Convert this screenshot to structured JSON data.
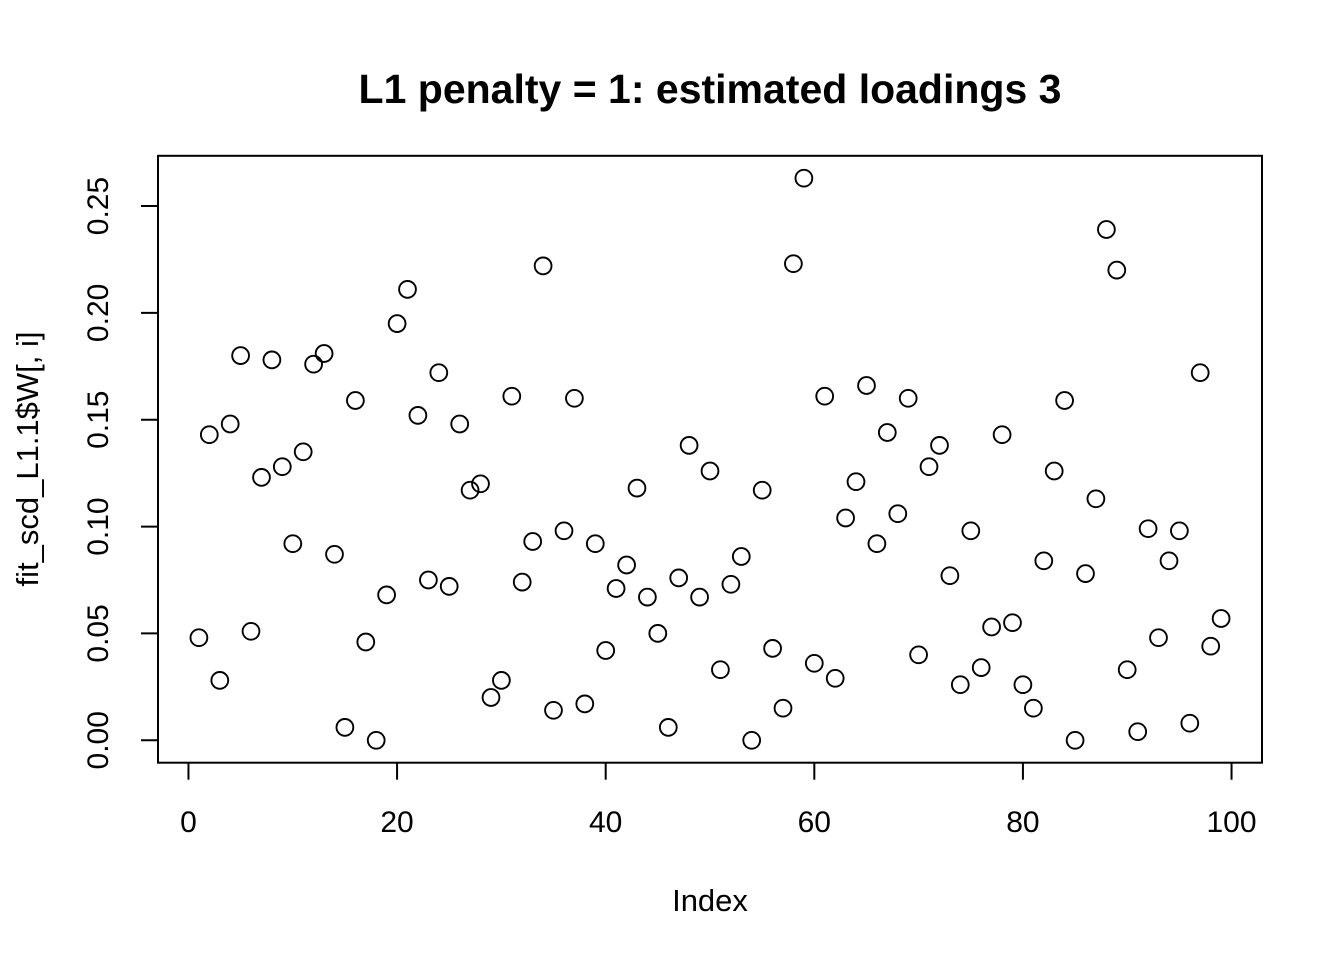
{
  "figure": {
    "background": "#ffffff",
    "foreground": "#000000"
  },
  "chart_data": {
    "type": "scatter",
    "title": "L1 penalty = 1: estimated loadings 3",
    "xlabel": "Index",
    "ylabel": "fit_scd_L1.1$W[, i]",
    "marker": "open-circle",
    "grid": false,
    "legend": null,
    "point_color": "#000000",
    "axis_color": "#000000",
    "xlim": [
      -2.92,
      102.92
    ],
    "ylim": [
      -0.0105,
      0.2735
    ],
    "x_ticks": [
      0,
      20,
      40,
      60,
      80,
      100
    ],
    "x_tick_labels": [
      "0",
      "20",
      "40",
      "60",
      "80",
      "100"
    ],
    "y_ticks": [
      0.0,
      0.05,
      0.1,
      0.15,
      0.2,
      0.25
    ],
    "y_tick_labels": [
      "0.00",
      "0.05",
      "0.10",
      "0.15",
      "0.20",
      "0.25"
    ],
    "n_points": 99,
    "x": [
      1,
      2,
      3,
      4,
      5,
      6,
      7,
      8,
      9,
      10,
      11,
      12,
      13,
      14,
      15,
      16,
      17,
      18,
      19,
      20,
      21,
      22,
      23,
      24,
      25,
      26,
      27,
      28,
      29,
      30,
      31,
      32,
      33,
      34,
      35,
      36,
      37,
      38,
      39,
      40,
      41,
      42,
      43,
      44,
      45,
      46,
      47,
      48,
      49,
      50,
      51,
      52,
      53,
      54,
      55,
      56,
      57,
      58,
      59,
      60,
      61,
      62,
      63,
      64,
      65,
      66,
      67,
      68,
      69,
      70,
      71,
      72,
      73,
      74,
      75,
      76,
      77,
      78,
      79,
      80,
      81,
      82,
      83,
      84,
      85,
      86,
      87,
      88,
      89,
      90,
      91,
      92,
      93,
      94,
      95,
      96,
      97,
      98,
      99
    ],
    "y": [
      0.048,
      0.143,
      0.028,
      0.148,
      0.18,
      0.051,
      0.123,
      0.178,
      0.128,
      0.092,
      0.135,
      0.176,
      0.181,
      0.087,
      0.006,
      0.159,
      0.046,
      0.0,
      0.068,
      0.195,
      0.211,
      0.152,
      0.075,
      0.172,
      0.072,
      0.148,
      0.117,
      0.12,
      0.02,
      0.028,
      0.161,
      0.074,
      0.093,
      0.222,
      0.014,
      0.098,
      0.16,
      0.017,
      0.092,
      0.042,
      0.071,
      0.082,
      0.118,
      0.067,
      0.05,
      0.006,
      0.076,
      0.138,
      0.067,
      0.126,
      0.033,
      0.073,
      0.086,
      0.0,
      0.117,
      0.043,
      0.015,
      0.223,
      0.263,
      0.036,
      0.161,
      0.029,
      0.104,
      0.121,
      0.166,
      0.092,
      0.144,
      0.106,
      0.16,
      0.04,
      0.128,
      0.138,
      0.077,
      0.026,
      0.098,
      0.034,
      0.053,
      0.143,
      0.055,
      0.026,
      0.015,
      0.084,
      0.126,
      0.159,
      0.0,
      0.078,
      0.113,
      0.239,
      0.22,
      0.033,
      0.004,
      0.099,
      0.048,
      0.084,
      0.098,
      0.008,
      0.172,
      0.044,
      0.057
    ]
  }
}
